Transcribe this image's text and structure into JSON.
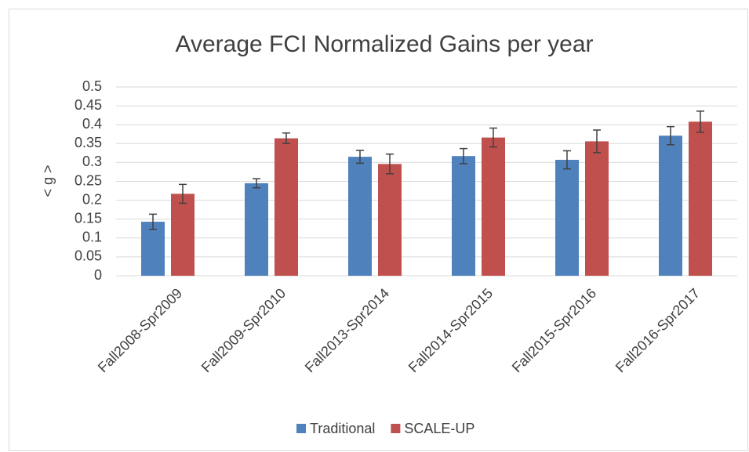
{
  "chart_data": {
    "type": "bar",
    "title": "Average FCI Normalized Gains per year",
    "y_label": "< g >",
    "categories": [
      "Fall2008-Spr2009",
      "Fall2009-Spr2010",
      "Fall2013-Spr2014",
      "Fall2014-Spr2015",
      "Fall2015-Spr2016",
      "Fall2016-Spr2017"
    ],
    "series": [
      {
        "name": "Traditional",
        "color": "#4f81bd",
        "values": [
          0.143,
          0.245,
          0.315,
          0.317,
          0.307,
          0.371
        ],
        "errors": [
          0.02,
          0.012,
          0.017,
          0.02,
          0.024,
          0.024
        ]
      },
      {
        "name": "SCALE-UP",
        "color": "#c0504d",
        "values": [
          0.217,
          0.364,
          0.296,
          0.366,
          0.356,
          0.408
        ],
        "errors": [
          0.025,
          0.014,
          0.026,
          0.025,
          0.03,
          0.028
        ]
      }
    ],
    "ylim": [
      0,
      0.5
    ],
    "yticks": [
      0,
      0.05,
      0.1,
      0.15,
      0.2,
      0.25,
      0.3,
      0.35,
      0.4,
      0.45,
      0.5
    ],
    "grid": true,
    "legend": "bottom"
  }
}
